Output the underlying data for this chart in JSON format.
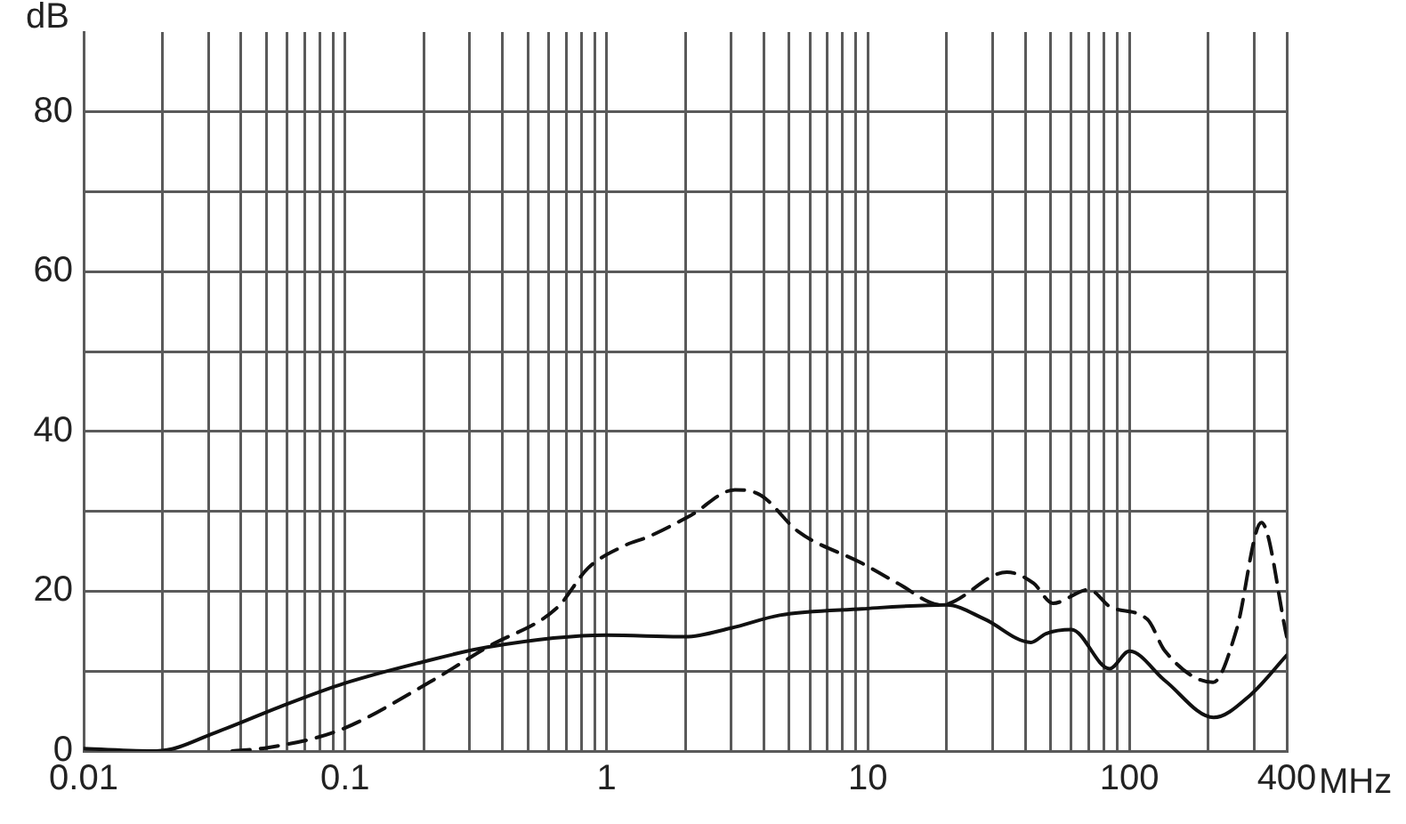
{
  "chart_data": {
    "type": "line",
    "xlabel": "MHz",
    "ylabel": "dB",
    "log": "x",
    "grid": true,
    "legend": false,
    "marker": "none",
    "xlim": [
      0.01,
      400
    ],
    "ylim": [
      0,
      90
    ],
    "xticks": [
      0.01,
      {
        "value": 0.02,
        "label": null
      },
      {
        "value": 0.03,
        "label": null
      },
      {
        "value": 0.04,
        "label": null
      },
      {
        "value": 0.05,
        "label": null
      },
      {
        "value": 0.06,
        "label": null
      },
      {
        "value": 0.07,
        "label": null
      },
      {
        "value": 0.08,
        "label": null
      },
      {
        "value": 0.09,
        "label": null
      },
      0.1,
      {
        "value": 0.2,
        "label": null
      },
      {
        "value": 0.3,
        "label": null
      },
      {
        "value": 0.4,
        "label": null
      },
      {
        "value": 0.5,
        "label": null
      },
      {
        "value": 0.6,
        "label": null
      },
      {
        "value": 0.7,
        "label": null
      },
      {
        "value": 0.8,
        "label": null
      },
      {
        "value": 0.9,
        "label": null
      },
      1,
      {
        "value": 2,
        "label": null
      },
      {
        "value": 3,
        "label": null
      },
      {
        "value": 4,
        "label": null
      },
      {
        "value": 5,
        "label": null
      },
      {
        "value": 6,
        "label": null
      },
      {
        "value": 7,
        "label": null
      },
      {
        "value": 8,
        "label": null
      },
      {
        "value": 9,
        "label": null
      },
      10,
      {
        "value": 20,
        "label": null
      },
      {
        "value": 30,
        "label": null
      },
      {
        "value": 40,
        "label": null
      },
      {
        "value": 50,
        "label": null
      },
      {
        "value": 60,
        "label": null
      },
      {
        "value": 70,
        "label": null
      },
      {
        "value": 80,
        "label": null
      },
      {
        "value": 90,
        "label": null
      },
      100,
      {
        "value": 200,
        "label": null
      },
      {
        "value": 300,
        "label": null
      },
      400
    ],
    "yticks": [
      0,
      {
        "value": 10,
        "label": null
      },
      20,
      {
        "value": 30,
        "label": null
      },
      40,
      {
        "value": 50,
        "label": null
      },
      60,
      {
        "value": 70,
        "label": null
      },
      80
    ],
    "series": [
      {
        "color": "#111111",
        "line_style": "solid",
        "x": [
          0.01,
          0.019,
          0.033,
          0.056,
          0.1,
          0.19,
          0.35,
          1,
          2,
          3,
          4.6,
          9.5,
          20,
          28,
          42,
          48,
          60,
          84,
          100,
          137,
          210,
          290,
          400
        ],
        "values": [
          0.3,
          0,
          2.5,
          5.5,
          8.5,
          11,
          13,
          14.5,
          14.3,
          15.4,
          17,
          17.8,
          18.3,
          16.5,
          13.6,
          14.7,
          15.2,
          10.3,
          12.5,
          8.8,
          4.2,
          7,
          12
        ]
      },
      {
        "color": "#111111",
        "line_style": "dashed",
        "x": [
          0.037,
          0.05,
          0.095,
          0.21,
          0.35,
          0.65,
          0.85,
          1.17,
          1.44,
          2.1,
          3.1,
          3.9,
          5.4,
          9.5,
          13,
          19,
          34,
          43,
          51,
          70,
          85,
          117,
          137,
          209,
          257,
          320,
          400
        ],
        "values": [
          0,
          0.4,
          2.6,
          8.6,
          13,
          18,
          22.9,
          25.7,
          26.8,
          29.5,
          32.7,
          32,
          27.5,
          23.5,
          21,
          18.3,
          22.4,
          21,
          18.5,
          20.2,
          18,
          16.5,
          12.5,
          8.6,
          15.2,
          28.6,
          14.3
        ]
      }
    ]
  }
}
